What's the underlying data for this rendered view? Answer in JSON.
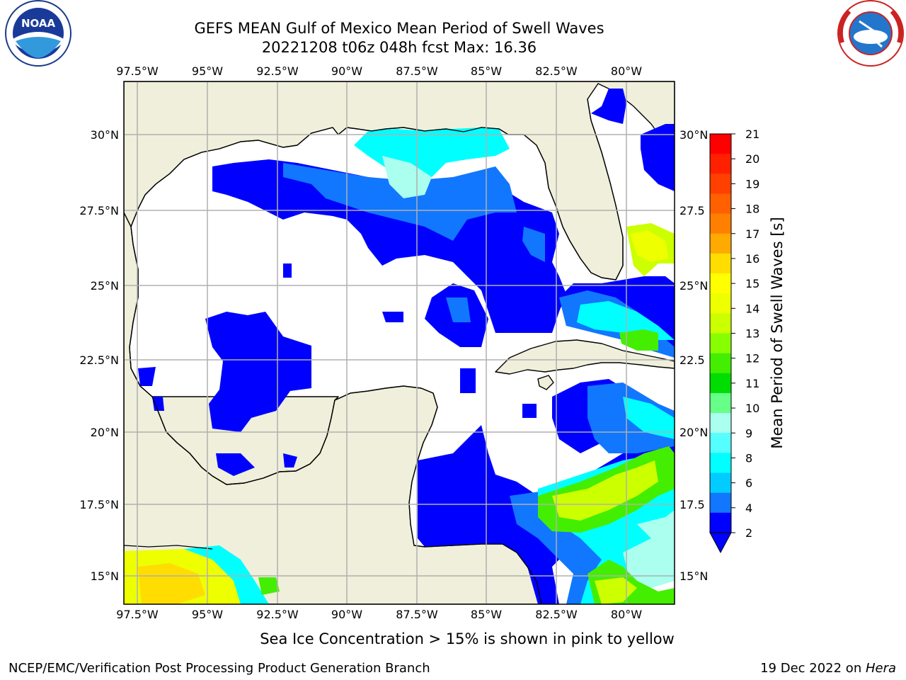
{
  "title_line1": "GEFS MEAN Gulf of Mexico Mean Period of Swell Waves",
  "title_line2": "20221208 t06z 048h fcst   Max: 16.36",
  "caption": "Sea Ice Concentration > 15% is shown in pink to yellow",
  "footer_left": "NCEP/EMC/Verification Post Processing Product Generation Branch",
  "footer_right_prefix": "19 Dec 2022 on ",
  "footer_right_host": "Hera",
  "logos": {
    "left": "noaa-logo",
    "right": "nws-logo"
  },
  "map": {
    "lon_ticks": [
      "97.5°W",
      "95°W",
      "92.5°W",
      "90°W",
      "87.5°W",
      "85°W",
      "82.5°W",
      "80°W"
    ],
    "lat_ticks": [
      "30°N",
      "27.5°N",
      "25°N",
      "22.5°N",
      "20°N",
      "17.5°N",
      "15°N"
    ],
    "right_lat_ticks": [
      "30°N",
      "27.5",
      "25°N",
      "22.5",
      "20°N",
      "17.5",
      "15°N"
    ],
    "land_color": "#efefdb",
    "water_color": "#ffffff",
    "grid_color": "#b0b0b0"
  },
  "colorbar": {
    "title": "Mean Period of Swell Waves [s]",
    "labels": [
      "21",
      "20",
      "19",
      "18",
      "17",
      "16",
      "15",
      "14",
      "13",
      "12",
      "11",
      "10",
      "9",
      "8",
      "6",
      "4",
      "2"
    ],
    "colors": [
      "#ff0000",
      "#ff2000",
      "#ff4000",
      "#ff6000",
      "#ff8000",
      "#ffaa00",
      "#ffdd00",
      "#ffff00",
      "#eeff00",
      "#ccff00",
      "#88ff00",
      "#44ee00",
      "#00dd00",
      "#66ff88",
      "#aaffee",
      "#55ffff",
      "#00ffff",
      "#00ccff",
      "#1177ff",
      "#0000ff"
    ]
  }
}
